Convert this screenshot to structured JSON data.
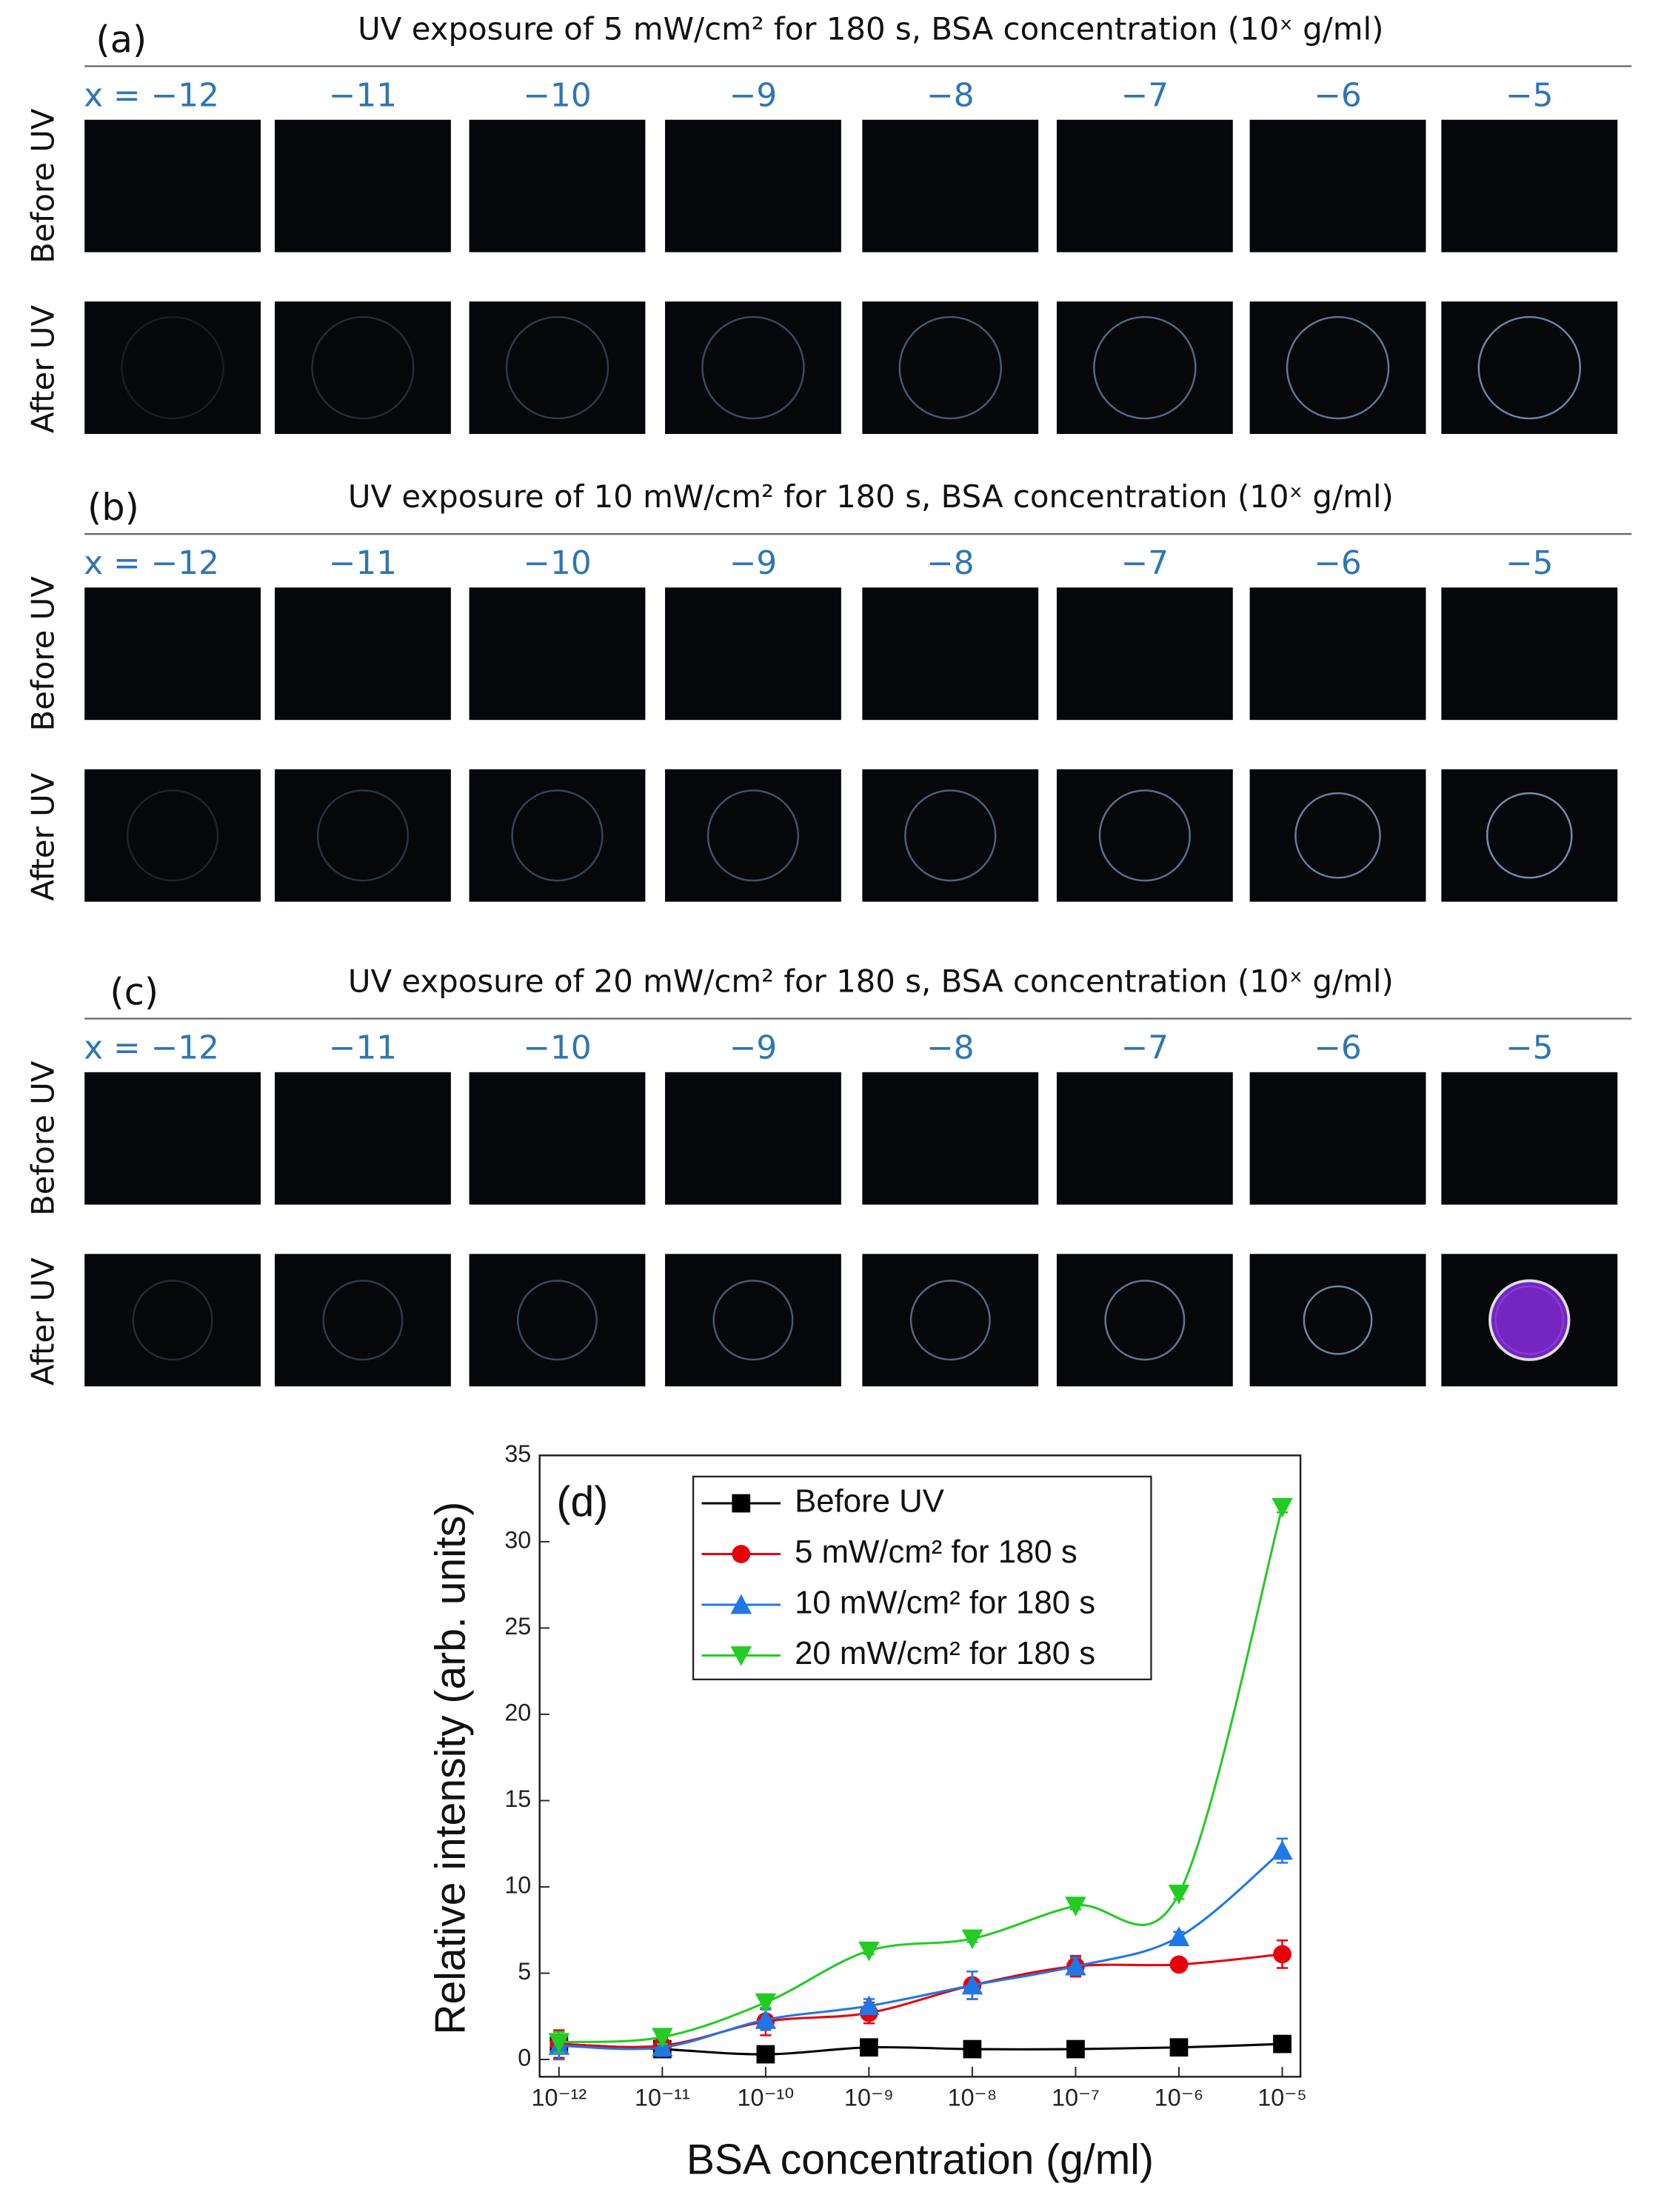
{
  "panels": [
    {
      "label": "(a)",
      "title": "UV exposure of 5 mW/cm² for 180 s, BSA concentration (10ˣ g/ml)",
      "column_labels": [
        "x = −12",
        "−11",
        "−10",
        "−9",
        "−8",
        "−7",
        "−6",
        "−5"
      ],
      "row_labels": [
        "Before UV",
        "After UV"
      ]
    },
    {
      "label": "(b)",
      "title": "UV exposure of 10 mW/cm² for 180 s, BSA concentration (10ˣ g/ml)",
      "column_labels": [
        "x = −12",
        "−11",
        "−10",
        "−9",
        "−8",
        "−7",
        "−6",
        "−5"
      ],
      "row_labels": [
        "Before UV",
        "After UV"
      ]
    },
    {
      "label": "(c)",
      "title": "UV exposure of 20 mW/cm² for 180 s, BSA concentration (10ˣ g/ml)",
      "column_labels": [
        "x = −12",
        "−11",
        "−10",
        "−9",
        "−8",
        "−7",
        "−6",
        "−5"
      ],
      "row_labels": [
        "Before UV",
        "After UV"
      ]
    }
  ],
  "chart_data": {
    "type": "line",
    "annotation": "(d)",
    "xlabel": "BSA concentration (g/ml)",
    "ylabel": "Relative intensity (arb. units)",
    "x": [
      1e-12,
      1e-11,
      1e-10,
      1e-09,
      1e-08,
      1e-07,
      1e-06,
      1e-05
    ],
    "xlog": true,
    "xlim": [
      6.5e-13,
      1.5e-05
    ],
    "xticks": [
      {
        "value": 1e-12,
        "label": "10⁻¹²"
      },
      {
        "value": 1e-11,
        "label": "10⁻¹¹"
      },
      {
        "value": 1e-10,
        "label": "10⁻¹⁰"
      },
      {
        "value": 1e-09,
        "label": "10⁻⁹"
      },
      {
        "value": 1e-08,
        "label": "10⁻⁸"
      },
      {
        "value": 1e-07,
        "label": "10⁻⁷"
      },
      {
        "value": 1e-06,
        "label": "10⁻⁶"
      },
      {
        "value": 1e-05,
        "label": "10⁻⁵"
      }
    ],
    "ylim": [
      -1,
      35
    ],
    "yticks": [
      0,
      5,
      10,
      15,
      20,
      25,
      30,
      35
    ],
    "legend": "upper left",
    "series": [
      {
        "name": "Before UV",
        "color": "#000000",
        "marker": "square",
        "values": [
          0.9,
          0.6,
          0.3,
          0.7,
          0.6,
          0.6,
          0.7,
          0.9
        ],
        "errors": [
          0.2,
          0.2,
          0.2,
          0.2,
          0.2,
          0.2,
          0.2,
          0.2
        ]
      },
      {
        "name": "5 mW/cm² for 180 s",
        "color": "#e8000b",
        "marker": "circle",
        "values": [
          0.9,
          0.8,
          2.2,
          2.7,
          4.3,
          5.4,
          5.5,
          6.1
        ],
        "errors": [
          0.8,
          0.5,
          0.8,
          0.6,
          0.8,
          0.6,
          0.3,
          0.8
        ]
      },
      {
        "name": "10 mW/cm² for 180 s",
        "color": "#1f77e8",
        "marker": "triangle-up",
        "values": [
          0.8,
          0.7,
          2.3,
          3.1,
          4.3,
          5.4,
          7.1,
          12.1
        ],
        "errors": [
          0.8,
          0.5,
          0.6,
          0.4,
          0.8,
          0.5,
          0.3,
          0.7
        ]
      },
      {
        "name": "20 mW/cm² for 180 s",
        "color": "#22cc22",
        "marker": "triangle-down",
        "values": [
          1.0,
          1.3,
          3.3,
          6.3,
          7.0,
          8.9,
          9.6,
          32.0
        ],
        "errors": [
          0.6,
          0.4,
          0.3,
          0.2,
          0.2,
          0.2,
          0.3,
          0.3
        ]
      }
    ]
  }
}
